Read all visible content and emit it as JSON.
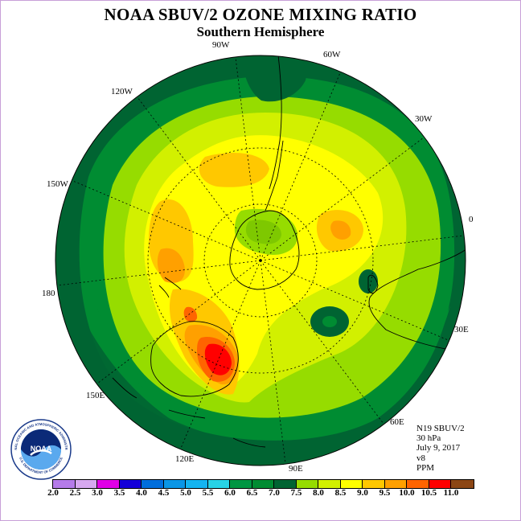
{
  "map": {
    "title": "NOAA SBUV/2 OZONE MIXING RATIO",
    "subtitle": "Southern Hemisphere",
    "longitude_labels": [
      "90W",
      "60W",
      "30W",
      "0",
      "30E",
      "60E",
      "90E",
      "120E",
      "150E",
      "180",
      "150W",
      "120W"
    ],
    "info": {
      "satellite": "N19 SBUV/2",
      "level": "30 hPa",
      "date": "July 9, 2017",
      "version": "v8",
      "units": "PPM"
    },
    "legend": {
      "ticks": [
        "2.0",
        "2.5",
        "3.0",
        "3.5",
        "4.0",
        "4.5",
        "5.0",
        "5.5",
        "6.0",
        "6.5",
        "7.0",
        "7.5",
        "8.0",
        "8.5",
        "9.0",
        "9.5",
        "10.0",
        "10.5",
        "11.0"
      ],
      "colors": [
        "#b57be9",
        "#d7a8f0",
        "#e100e6",
        "#1400d8",
        "#006edc",
        "#0a96e6",
        "#14b4f0",
        "#28d2e6",
        "#009642",
        "#008c32",
        "#006432",
        "#96dc00",
        "#d2f000",
        "#ffff00",
        "#ffc800",
        "#ffa000",
        "#ff6400",
        "#ff0000",
        "#8c4614"
      ]
    },
    "logo": {
      "text": "NOAA",
      "ring_text": "NATIONAL OCEANIC AND ATMOSPHERIC ADMINISTRATION",
      "ring_text_bottom": "U.S. DEPARTMENT OF COMMERCE"
    },
    "colors": {
      "background_ring": "#006432",
      "band_green": "#008c32",
      "lime": "#96dc00",
      "yellow_green": "#d2f000",
      "yellow": "#ffff00",
      "light_orange": "#ffc800",
      "orange": "#ffa000",
      "red_orange": "#ff6400",
      "red": "#ff0000"
    }
  }
}
